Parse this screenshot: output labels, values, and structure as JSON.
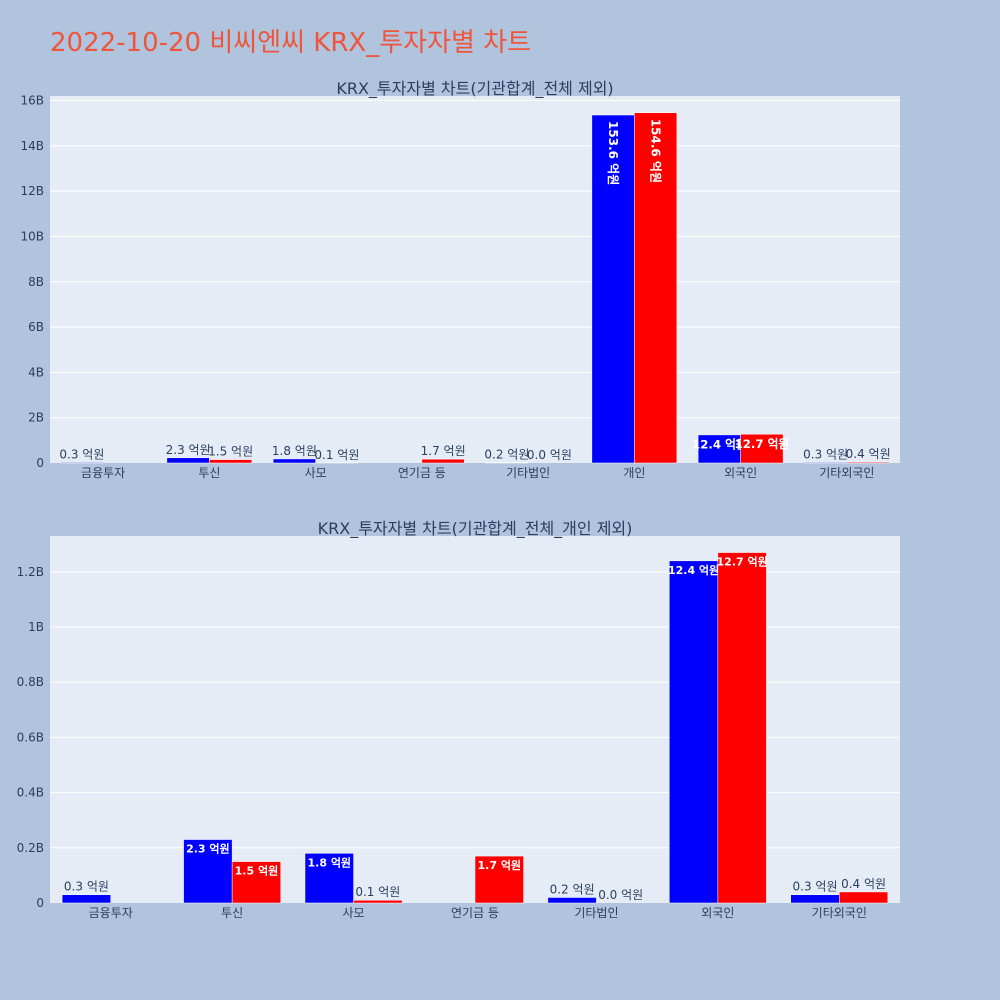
{
  "page_title": "2022-10-20 비씨엔씨 KRX_투자자별 차트",
  "colors": {
    "background": "#b0c4de",
    "plot_bg": "#e5ecf6",
    "title": "#ef553b",
    "text": "#2a3f5f",
    "series_a": "#0000ff",
    "series_b": "#ff0000"
  },
  "chart_data": [
    {
      "type": "bar",
      "title": "KRX_투자자별 차트(기관합계_전체 제외)",
      "categories": [
        "금융투자",
        "투신",
        "사모",
        "연기금 등",
        "기타법인",
        "개인",
        "외국인",
        "기타외국인"
      ],
      "ylim": [
        0,
        16.2
      ],
      "y_ticks": [
        0,
        2,
        4,
        6,
        8,
        10,
        12,
        14,
        16
      ],
      "y_tick_labels": [
        "0",
        "2B",
        "4B",
        "6B",
        "8B",
        "10B",
        "12B",
        "14B",
        "16B"
      ],
      "grid": true,
      "series": [
        {
          "values": [
            0.03,
            0.23,
            0.18,
            null,
            0.02,
            15.36,
            1.24,
            0.03
          ],
          "labels": [
            "0.3 억원",
            "2.3 억원",
            "1.8 억원",
            "",
            "0.2 억원",
            "153.6 억원",
            "12.4 억원",
            "0.3 억원"
          ]
        },
        {
          "values": [
            null,
            0.15,
            0.01,
            0.17,
            0.0,
            15.46,
            1.27,
            0.04
          ],
          "labels": [
            "",
            "1.5 억원",
            "0.1 억원",
            "1.7 억원",
            "0.0 억원",
            "154.6 억원",
            "12.7 억원",
            "0.4 억원"
          ]
        }
      ]
    },
    {
      "type": "bar",
      "title": "KRX_투자자별 차트(기관합계_전체_개인 제외)",
      "categories": [
        "금융투자",
        "투신",
        "사모",
        "연기금 등",
        "기타법인",
        "외국인",
        "기타외국인"
      ],
      "ylim": [
        0,
        1.33
      ],
      "y_ticks": [
        0,
        0.2,
        0.4,
        0.6,
        0.8,
        1.0,
        1.2
      ],
      "y_tick_labels": [
        "0",
        "0.2B",
        "0.4B",
        "0.6B",
        "0.8B",
        "1B",
        "1.2B"
      ],
      "grid": true,
      "series": [
        {
          "values": [
            0.03,
            0.23,
            0.18,
            null,
            0.02,
            1.24,
            0.03
          ],
          "labels": [
            "0.3 억원",
            "2.3 억원",
            "1.8 억원",
            "",
            "0.2 억원",
            "12.4 억원",
            "0.3 억원"
          ]
        },
        {
          "values": [
            null,
            0.15,
            0.01,
            0.17,
            0.0,
            1.27,
            0.04
          ],
          "labels": [
            "",
            "1.5 억원",
            "0.1 억원",
            "1.7 억원",
            "0.0 억원",
            "12.7 억원",
            "0.4 억원"
          ]
        }
      ]
    }
  ]
}
